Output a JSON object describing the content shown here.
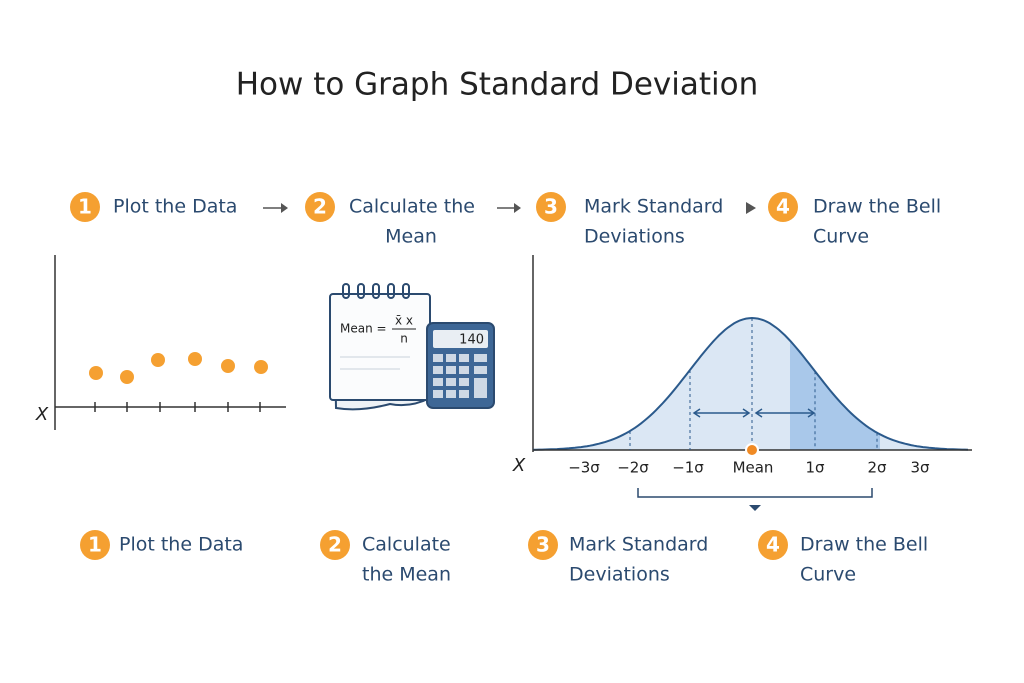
{
  "title": "How to Graph Standard Deviation",
  "top_steps": [
    {
      "number": "1",
      "lines": [
        "Plot the Data"
      ]
    },
    {
      "number": "2",
      "lines": [
        "Calculate the",
        "Mean"
      ]
    },
    {
      "number": "3",
      "lines": [
        "Mark Standard",
        "Deviations"
      ]
    },
    {
      "number": "4",
      "lines": [
        "Draw the Bell",
        "Curve"
      ]
    }
  ],
  "bottom_steps": [
    {
      "number": "1",
      "lines": [
        "Plot the Data"
      ]
    },
    {
      "number": "2",
      "lines": [
        "Calculate",
        "the Mean"
      ]
    },
    {
      "number": "3",
      "lines": [
        "Mark Standard",
        "Deviations"
      ]
    },
    {
      "number": "4",
      "lines": [
        "Draw the Bell",
        "Curve"
      ]
    }
  ],
  "scatter": {
    "axis_label": "X"
  },
  "calculator": {
    "formula_left": "Mean =",
    "numerator": "x̄ x",
    "denominator": "n",
    "display": "140"
  },
  "bell": {
    "axis_label": "X",
    "labels": [
      "−3σ",
      "−2σ",
      "−1σ",
      "Mean",
      "1σ",
      "2σ",
      "3σ"
    ]
  }
}
